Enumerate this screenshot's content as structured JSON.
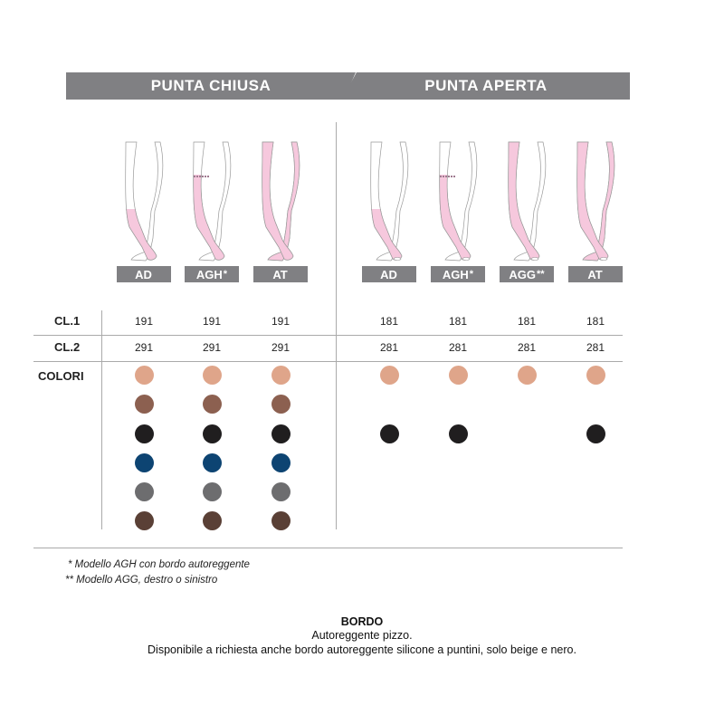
{
  "headers": {
    "left": "PUNTA CHIUSA",
    "right": "PUNTA APERTA"
  },
  "models": [
    {
      "group": "chiusa",
      "code": "AD",
      "mark": "",
      "coverage": "knee",
      "cl1": "191",
      "cl2": "291",
      "colors": [
        "#dfa58a",
        "#8c6050",
        "#201e1f",
        "#0d4472",
        "#6d6d6f",
        "#5a4036"
      ]
    },
    {
      "group": "chiusa",
      "code": "AGH",
      "mark": "*",
      "coverage": "thigh",
      "cl1": "191",
      "cl2": "291",
      "colors": [
        "#dfa58a",
        "#8c6050",
        "#201e1f",
        "#0d4472",
        "#6d6d6f",
        "#5a4036"
      ]
    },
    {
      "group": "chiusa",
      "code": "AT",
      "mark": "",
      "coverage": "tights",
      "cl1": "191",
      "cl2": "291",
      "colors": [
        "#dfa58a",
        "#8c6050",
        "#201e1f",
        "#0d4472",
        "#6d6d6f",
        "#5a4036"
      ]
    },
    {
      "group": "aperta",
      "code": "AD",
      "mark": "",
      "coverage": "knee",
      "cl1": "181",
      "cl2": "281",
      "colors": [
        "#dfa58a",
        null,
        "#201e1f",
        null,
        null,
        null
      ]
    },
    {
      "group": "aperta",
      "code": "AGH",
      "mark": "*",
      "coverage": "thigh",
      "cl1": "181",
      "cl2": "281",
      "colors": [
        "#dfa58a",
        null,
        "#201e1f",
        null,
        null,
        null
      ]
    },
    {
      "group": "aperta",
      "code": "AGG",
      "mark": "**",
      "coverage": "hip",
      "cl1": "181",
      "cl2": "281",
      "colors": [
        "#dfa58a",
        null,
        null,
        null,
        null,
        null
      ]
    },
    {
      "group": "aperta",
      "code": "AT",
      "mark": "",
      "coverage": "tights",
      "cl1": "181",
      "cl2": "281",
      "colors": [
        "#dfa58a",
        null,
        "#201e1f",
        null,
        null,
        null
      ]
    }
  ],
  "rows": {
    "cl1": "CL.1",
    "cl2": "CL.2",
    "colori": "COLORI"
  },
  "notes": [
    "*  Modello AGH con bordo autoreggente",
    "**  Modello AGG, destro o sinistro"
  ],
  "footer": {
    "title": "BORDO",
    "line1": "Autoreggente pizzo.",
    "line2": "Disponibile a richiesta anche bordo autoreggente silicone a puntini, solo beige e nero."
  },
  "stocking_color": "#f6c8dd"
}
